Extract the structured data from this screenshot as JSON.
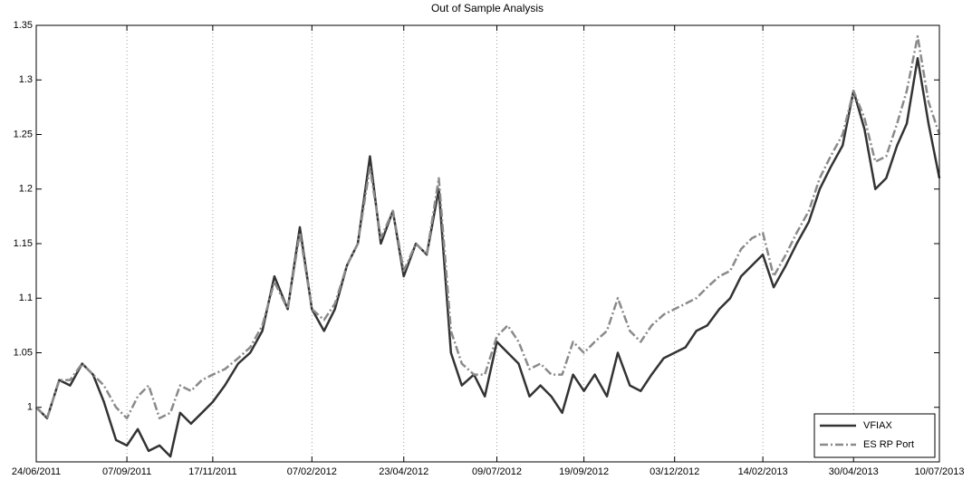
{
  "chart_data": {
    "type": "line",
    "title": "Out of Sample Analysis",
    "x": [
      "24/06/2011",
      "03/07/2011",
      "13/07/2011",
      "22/07/2011",
      "01/08/2011",
      "10/08/2011",
      "19/08/2011",
      "29/08/2011",
      "07/09/2011",
      "16/09/2011",
      "25/09/2011",
      "04/10/2011",
      "13/10/2011",
      "21/10/2011",
      "30/10/2011",
      "08/11/2011",
      "17/11/2011",
      "27/11/2011",
      "08/12/2011",
      "18/12/2011",
      "28/12/2011",
      "07/01/2012",
      "18/01/2012",
      "28/01/2012",
      "07/02/2012",
      "17/02/2012",
      "26/02/2012",
      "07/03/2012",
      "16/03/2012",
      "26/03/2012",
      "04/04/2012",
      "14/04/2012",
      "23/04/2012",
      "03/05/2012",
      "12/05/2012",
      "22/05/2012",
      "01/06/2012",
      "10/06/2012",
      "20/06/2012",
      "29/06/2012",
      "09/07/2012",
      "18/07/2012",
      "27/07/2012",
      "05/08/2012",
      "14/08/2012",
      "23/08/2012",
      "01/09/2012",
      "10/09/2012",
      "19/09/2012",
      "28/09/2012",
      "08/10/2012",
      "17/10/2012",
      "27/10/2012",
      "05/11/2012",
      "14/11/2012",
      "24/11/2012",
      "03/12/2012",
      "12/12/2012",
      "21/12/2012",
      "30/12/2012",
      "09/01/2013",
      "18/01/2013",
      "27/01/2013",
      "05/02/2013",
      "14/02/2013",
      "23/02/2013",
      "05/03/2013",
      "14/03/2013",
      "24/03/2013",
      "02/04/2013",
      "11/04/2013",
      "21/04/2013",
      "30/04/2013",
      "09/05/2013",
      "18/05/2013",
      "27/05/2013",
      "05/06/2013",
      "13/06/2013",
      "22/06/2013",
      "01/07/2013",
      "10/07/2013"
    ],
    "series": [
      {
        "name": "VFIAX",
        "color": "#333333",
        "linestyle": "solid",
        "values": [
          1.0,
          0.99,
          1.025,
          1.02,
          1.04,
          1.03,
          1.005,
          0.97,
          0.965,
          0.98,
          0.96,
          0.965,
          0.955,
          0.995,
          0.985,
          0.995,
          1.005,
          1.02,
          1.04,
          1.05,
          1.07,
          1.12,
          1.09,
          1.165,
          1.09,
          1.07,
          1.09,
          1.13,
          1.15,
          1.23,
          1.15,
          1.18,
          1.12,
          1.15,
          1.14,
          1.2,
          1.05,
          1.02,
          1.03,
          1.01,
          1.06,
          1.05,
          1.04,
          1.01,
          1.02,
          1.01,
          0.995,
          1.03,
          1.015,
          1.03,
          1.01,
          1.05,
          1.02,
          1.015,
          1.03,
          1.045,
          1.05,
          1.055,
          1.07,
          1.075,
          1.09,
          1.1,
          1.12,
          1.13,
          1.14,
          1.11,
          1.13,
          1.15,
          1.17,
          1.2,
          1.22,
          1.24,
          1.29,
          1.255,
          1.2,
          1.21,
          1.24,
          1.26,
          1.32,
          1.26,
          1.21
        ]
      },
      {
        "name": "ES RP Port",
        "color": "#8a8a8a",
        "linestyle": "dashdot",
        "values": [
          1.0,
          0.99,
          1.025,
          1.025,
          1.04,
          1.03,
          1.02,
          1.0,
          0.99,
          1.01,
          1.02,
          0.99,
          0.995,
          1.02,
          1.015,
          1.025,
          1.03,
          1.035,
          1.045,
          1.055,
          1.075,
          1.115,
          1.09,
          1.16,
          1.09,
          1.08,
          1.095,
          1.13,
          1.15,
          1.22,
          1.155,
          1.18,
          1.125,
          1.15,
          1.14,
          1.21,
          1.07,
          1.04,
          1.03,
          1.03,
          1.065,
          1.075,
          1.06,
          1.035,
          1.04,
          1.03,
          1.03,
          1.06,
          1.05,
          1.06,
          1.07,
          1.1,
          1.07,
          1.06,
          1.075,
          1.085,
          1.09,
          1.095,
          1.1,
          1.11,
          1.12,
          1.125,
          1.145,
          1.155,
          1.16,
          1.12,
          1.14,
          1.16,
          1.18,
          1.21,
          1.23,
          1.25,
          1.29,
          1.265,
          1.225,
          1.23,
          1.26,
          1.29,
          1.34,
          1.28,
          1.25
        ]
      }
    ],
    "xlim": [
      "24/06/2011",
      "10/07/2013"
    ],
    "xticks": [
      "24/06/2011",
      "07/09/2011",
      "17/11/2011",
      "07/02/2012",
      "23/04/2012",
      "09/07/2012",
      "19/09/2012",
      "03/12/2012",
      "14/02/2013",
      "30/04/2013",
      "10/07/2013"
    ],
    "ylim": [
      0.95,
      1.35
    ],
    "yticks": [
      1,
      1.05,
      1.1,
      1.15,
      1.2,
      1.25,
      1.3,
      1.35
    ],
    "xgrid": true,
    "legend": "lower right"
  }
}
